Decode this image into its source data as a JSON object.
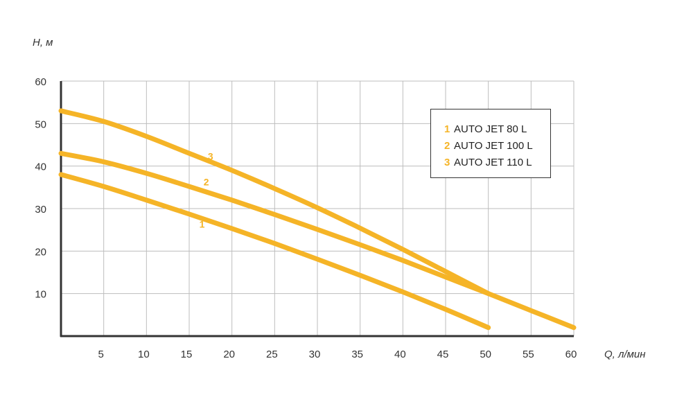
{
  "chart_data": {
    "type": "line",
    "xlabel": "Q, л/мин",
    "ylabel": "H, м",
    "xlim": [
      0,
      60
    ],
    "ylim": [
      0,
      60
    ],
    "xticks": [
      5,
      10,
      15,
      20,
      25,
      30,
      35,
      40,
      45,
      50,
      55,
      60
    ],
    "yticks": [
      10,
      20,
      30,
      40,
      50,
      60
    ],
    "grid": true,
    "legend_position": "top-right",
    "line_color": "#F5B427",
    "series": [
      {
        "name": "AUTO JET 80 L",
        "legend_number": "1",
        "curve_label": "1",
        "x": [
          0,
          5,
          10,
          15,
          20,
          25,
          30,
          35,
          40,
          45,
          50
        ],
        "y": [
          38,
          35.2,
          32,
          28.7,
          25.3,
          21.8,
          18.1,
          14.3,
          10.4,
          6.3,
          2
        ],
        "label_at": [
          16.5,
          25.5
        ]
      },
      {
        "name": "AUTO JET 100 L",
        "legend_number": "2",
        "curve_label": "2",
        "x": [
          0,
          5,
          10,
          15,
          20,
          25,
          30,
          35,
          40,
          45,
          50,
          55,
          60
        ],
        "y": [
          43,
          41,
          38.3,
          35.2,
          32,
          28.6,
          25.1,
          21.5,
          17.8,
          13.9,
          10,
          6,
          2
        ],
        "label_at": [
          17,
          35.5
        ]
      },
      {
        "name": "AUTO JET 110 L",
        "legend_number": "3",
        "curve_label": "3",
        "x": [
          0,
          5,
          10,
          15,
          20,
          25,
          30,
          35,
          40,
          45,
          50
        ],
        "y": [
          53,
          50.5,
          47,
          43,
          39,
          34.7,
          30.2,
          25.4,
          20.4,
          15.2,
          10
        ],
        "label_at": [
          17.5,
          41.5
        ]
      }
    ]
  }
}
